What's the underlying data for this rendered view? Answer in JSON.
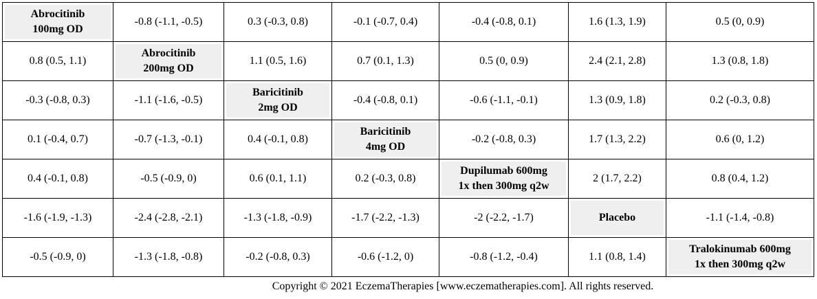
{
  "table": {
    "rows": [
      [
        "Abrocitinib\n100mg OD",
        "-0.8 (-1.1, -0.5)",
        "0.3 (-0.3, 0.8)",
        "-0.1 (-0.7, 0.4)",
        "-0.4 (-0.8, 0.1)",
        "1.6 (1.3, 1.9)",
        "0.5 (0, 0.9)"
      ],
      [
        "0.8 (0.5, 1.1)",
        "Abrocitinib\n200mg OD",
        "1.1 (0.5, 1.6)",
        "0.7 (0.1, 1.3)",
        "0.5 (0, 0.9)",
        "2.4 (2.1, 2.8)",
        "1.3 (0.8, 1.8)"
      ],
      [
        "-0.3 (-0.8, 0.3)",
        "-1.1 (-1.6, -0.5)",
        "Baricitinib\n2mg OD",
        "-0.4 (-0.8, 0.1)",
        "-0.6 (-1.1, -0.1)",
        "1.3 (0.9, 1.8)",
        "0.2 (-0.3, 0.8)"
      ],
      [
        "0.1 (-0.4, 0.7)",
        "-0.7 (-1.3, -0.1)",
        "0.4 (-0.1, 0.8)",
        "Baricitinib\n4mg OD",
        "-0.2 (-0.8, 0.3)",
        "1.7 (1.3, 2.2)",
        "0.6 (0, 1.2)"
      ],
      [
        "0.4 (-0.1, 0.8)",
        "-0.5 (-0.9, 0)",
        "0.6 (0.1, 1.1)",
        "0.2 (-0.3, 0.8)",
        "Dupilumab 600mg\n1x then 300mg q2w",
        "2 (1.7, 2.2)",
        "0.8 (0.4, 1.2)"
      ],
      [
        "-1.6 (-1.9, -1.3)",
        "-2.4 (-2.8, -2.1)",
        "-1.3 (-1.8, -0.9)",
        "-1.7 (-2.2, -1.3)",
        "-2 (-2.2, -1.7)",
        "Placebo",
        "-1.1 (-1.4, -0.8)"
      ],
      [
        "-0.5 (-0.9, 0)",
        "-1.3 (-1.8, -0.8)",
        "-0.2 (-0.8, 0.3)",
        "-0.6 (-1.2, 0)",
        "-0.8 (-1.2, -0.4)",
        "1.1 (0.8, 1.4)",
        "Tralokinumab 600mg\n1x then 300mg q2w"
      ]
    ]
  },
  "footer": "Copyright © 2021 EczemaTherapies [www.eczematherapies.com]. All rights reserved."
}
